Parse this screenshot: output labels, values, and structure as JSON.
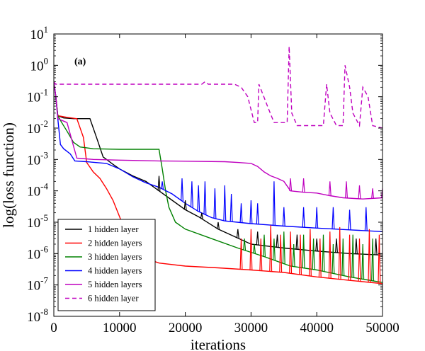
{
  "chart_data": {
    "type": "line",
    "panel_label": "(a)",
    "title": "",
    "xlabel": "iterations",
    "ylabel": "log(loss function)",
    "xlim": [
      0,
      50000
    ],
    "ylim": [
      1e-08,
      10
    ],
    "yscale": "log",
    "x_ticks": [
      0,
      10000,
      20000,
      30000,
      40000,
      50000
    ],
    "x_tick_labels": [
      "0",
      "10000",
      "20000",
      "30000",
      "40000",
      "50000"
    ],
    "y_ticks": [
      1e-08,
      1e-07,
      1e-06,
      1e-05,
      0.0001,
      0.001,
      0.01,
      0.1,
      1,
      10
    ],
    "y_tick_mantissa": [
      "10",
      "10",
      "10",
      "10",
      "10",
      "10",
      "10",
      "10",
      "10",
      "10"
    ],
    "y_tick_exponents": [
      "-8",
      "-7",
      "-6",
      "-5",
      "-4",
      "-3",
      "-2",
      "-1",
      "0",
      "1"
    ],
    "grid": false,
    "legend_position": "bottom-left",
    "series": [
      {
        "name": "1 hidden layer",
        "color": "#000000",
        "style": "solid",
        "points": [
          [
            0,
            0.3
          ],
          [
            300,
            0.1
          ],
          [
            600,
            0.025
          ],
          [
            1500,
            0.021
          ],
          [
            3000,
            0.02
          ],
          [
            5500,
            0.02
          ],
          [
            6500,
            0.005
          ],
          [
            7500,
            0.0012
          ],
          [
            9000,
            0.0007
          ],
          [
            10000,
            0.0005
          ],
          [
            12000,
            0.0003
          ],
          [
            14000,
            0.0002
          ],
          [
            16000,
            0.0001
          ],
          [
            18000,
            5e-05
          ],
          [
            20000,
            2.5e-05
          ],
          [
            22000,
            1.5e-05
          ],
          [
            25000,
            6e-06
          ],
          [
            30000,
            2e-06
          ],
          [
            35000,
            1.5e-06
          ],
          [
            40000,
            1.2e-06
          ],
          [
            45000,
            1e-06
          ],
          [
            50000,
            9e-07
          ]
        ]
      },
      {
        "name": "2 hidden layers",
        "color": "#ff0000",
        "style": "solid",
        "points": [
          [
            0,
            0.3
          ],
          [
            300,
            0.1
          ],
          [
            600,
            0.025
          ],
          [
            2000,
            0.022
          ],
          [
            3500,
            0.02
          ],
          [
            4500,
            0.005
          ],
          [
            5000,
            0.0008
          ],
          [
            6000,
            0.0004
          ],
          [
            7000,
            0.00025
          ],
          [
            8000,
            0.00012
          ],
          [
            9000,
            5e-05
          ],
          [
            10000,
            1.5e-05
          ],
          [
            11000,
            4.5e-06
          ],
          [
            12500,
            1.3e-06
          ],
          [
            14000,
            7e-07
          ],
          [
            16000,
            5e-07
          ],
          [
            20000,
            4e-07
          ],
          [
            25000,
            3.5e-07
          ],
          [
            30000,
            3e-07
          ],
          [
            35000,
            2.5e-07
          ],
          [
            40000,
            1.8e-07
          ],
          [
            45000,
            1.4e-07
          ],
          [
            50000,
            1.1e-07
          ]
        ]
      },
      {
        "name": "3 hidden layers",
        "color": "#008000",
        "style": "solid",
        "points": [
          [
            0,
            0.3
          ],
          [
            300,
            0.1
          ],
          [
            600,
            0.025
          ],
          [
            1200,
            0.015
          ],
          [
            2000,
            0.008
          ],
          [
            3000,
            0.0035
          ],
          [
            4000,
            0.0025
          ],
          [
            6000,
            0.0022
          ],
          [
            10000,
            0.0021
          ],
          [
            16000,
            0.0021
          ],
          [
            16500,
            0.0005
          ],
          [
            17000,
            0.0001
          ],
          [
            17500,
            3e-05
          ],
          [
            18500,
            1e-05
          ],
          [
            20000,
            6e-06
          ],
          [
            24000,
            3e-06
          ],
          [
            28000,
            1.5e-06
          ],
          [
            32000,
            8e-07
          ],
          [
            36000,
            4e-07
          ],
          [
            40000,
            3e-07
          ],
          [
            45000,
            1.8e-07
          ],
          [
            50000,
            1.2e-07
          ]
        ]
      },
      {
        "name": "4 hidden layers",
        "color": "#0000ff",
        "style": "solid",
        "points": [
          [
            0,
            0.3
          ],
          [
            300,
            0.1
          ],
          [
            600,
            0.02
          ],
          [
            1000,
            0.003
          ],
          [
            1500,
            0.0022
          ],
          [
            2500,
            0.0015
          ],
          [
            3200,
            0.0009
          ],
          [
            5000,
            0.00085
          ],
          [
            8000,
            0.00075
          ],
          [
            10000,
            0.0005
          ],
          [
            12000,
            0.00028
          ],
          [
            14000,
            0.00018
          ],
          [
            16000,
            0.00013
          ],
          [
            18000,
            8e-05
          ],
          [
            20000,
            4e-05
          ],
          [
            22000,
            2.2e-05
          ],
          [
            24000,
            1.4e-05
          ],
          [
            26000,
            1.1e-05
          ],
          [
            30000,
            9e-06
          ],
          [
            35000,
            7.5e-06
          ],
          [
            40000,
            6.5e-06
          ],
          [
            45000,
            5.7e-06
          ],
          [
            50000,
            5e-06
          ]
        ]
      },
      {
        "name": "5 hidden layers",
        "color": "#bf00bf",
        "style": "solid",
        "points": [
          [
            0,
            0.3
          ],
          [
            300,
            0.1
          ],
          [
            600,
            0.02
          ],
          [
            2000,
            0.015
          ],
          [
            3500,
            0.0011
          ],
          [
            6000,
            0.001
          ],
          [
            10000,
            0.00095
          ],
          [
            16000,
            0.0009
          ],
          [
            20000,
            0.00088
          ],
          [
            26000,
            0.00085
          ],
          [
            28000,
            0.0008
          ],
          [
            30000,
            0.00075
          ],
          [
            31000,
            0.0006
          ],
          [
            32000,
            0.0004
          ],
          [
            33000,
            0.0003
          ],
          [
            34000,
            0.00025
          ],
          [
            35000,
            0.0002
          ],
          [
            36000,
            0.0001
          ],
          [
            38000,
            9e-05
          ],
          [
            40000,
            8.5e-05
          ],
          [
            42000,
            7e-05
          ],
          [
            44000,
            6e-05
          ],
          [
            47000,
            5.5e-05
          ],
          [
            50000,
            6e-05
          ]
        ]
      },
      {
        "name": "6 hidden layer",
        "color": "#bf00bf",
        "style": "dashed",
        "points": [
          [
            0,
            0.3
          ],
          [
            300,
            0.25
          ],
          [
            2000,
            0.25
          ],
          [
            10000,
            0.25
          ],
          [
            20000,
            0.25
          ],
          [
            22500,
            0.25
          ],
          [
            23000,
            0.3
          ],
          [
            23500,
            0.25
          ],
          [
            27500,
            0.25
          ],
          [
            28500,
            0.2
          ],
          [
            29500,
            0.1
          ],
          [
            30500,
            0.015
          ],
          [
            31000,
            0.015
          ],
          [
            31200,
            0.25
          ],
          [
            31800,
            0.12
          ],
          [
            32500,
            0.05
          ],
          [
            33500,
            0.015
          ],
          [
            35500,
            0.015
          ],
          [
            35800,
            4.0
          ],
          [
            36200,
            0.03
          ],
          [
            37000,
            0.012
          ],
          [
            41000,
            0.012
          ],
          [
            41500,
            0.25
          ],
          [
            42000,
            0.03
          ],
          [
            43000,
            0.012
          ],
          [
            44000,
            0.012
          ],
          [
            44300,
            1.0
          ],
          [
            45000,
            0.2
          ],
          [
            45500,
            0.03
          ],
          [
            46500,
            0.012
          ],
          [
            47000,
            0.2
          ],
          [
            47800,
            0.1
          ],
          [
            48500,
            0.012
          ],
          [
            50000,
            0.01
          ]
        ]
      }
    ],
    "spikes": [
      {
        "series": "4 hidden layers",
        "x": [
          16500,
          19500,
          21000,
          22000,
          23000,
          24500,
          26000,
          27000,
          28500,
          30000,
          31000,
          33500,
          35000,
          38000,
          40000,
          42500,
          45000,
          47500
        ],
        "y": [
          0.0002,
          0.00025,
          0.0002,
          0.00015,
          0.0002,
          0.00012,
          0.00015,
          8e-05,
          4e-05,
          5e-05,
          4e-05,
          0.0002,
          3e-05,
          3e-05,
          3e-05,
          3e-05,
          2.5e-05,
          3e-05
        ]
      },
      {
        "series": "1 hidden layer",
        "x": [
          16000,
          20000,
          22500,
          25000,
          28000,
          31000,
          34000,
          37000,
          40000,
          43000,
          46000,
          49000
        ],
        "y": [
          0.0003,
          5e-05,
          2e-05,
          1e-05,
          6e-06,
          5e-06,
          4e-06,
          4e-06,
          3e-06,
          3e-06,
          3e-06,
          3e-06
        ]
      },
      {
        "series": "2 hidden layers",
        "x": [
          28500,
          30000,
          31500,
          33000,
          34500,
          36000,
          37500,
          39000,
          40500,
          42000,
          43500,
          45000,
          46500,
          48000,
          49500
        ],
        "y": [
          3e-06,
          6e-06,
          3e-06,
          8e-06,
          4e-06,
          5e-06,
          4e-06,
          6e-06,
          3e-06,
          5e-06,
          7e-06,
          4e-06,
          3e-06,
          6e-06,
          4e-06
        ]
      },
      {
        "series": "3 hidden layers",
        "x": [
          29000,
          30500,
          32000,
          33500,
          35000,
          36500,
          38000,
          39500,
          41000,
          42500,
          44000,
          45500,
          47000,
          48500
        ],
        "y": [
          3e-06,
          2e-06,
          4e-06,
          3e-06,
          5e-06,
          2e-06,
          4e-06,
          3e-06,
          4e-06,
          2e-06,
          3e-06,
          4e-06,
          2e-06,
          3e-06
        ]
      },
      {
        "series": "5 hidden layers",
        "x": [
          36000,
          38000,
          42000,
          44500,
          46500,
          48500,
          50000
        ],
        "y": [
          0.00025,
          0.00025,
          0.0002,
          0.0002,
          0.00015,
          0.00012,
          0.00012
        ]
      }
    ]
  }
}
